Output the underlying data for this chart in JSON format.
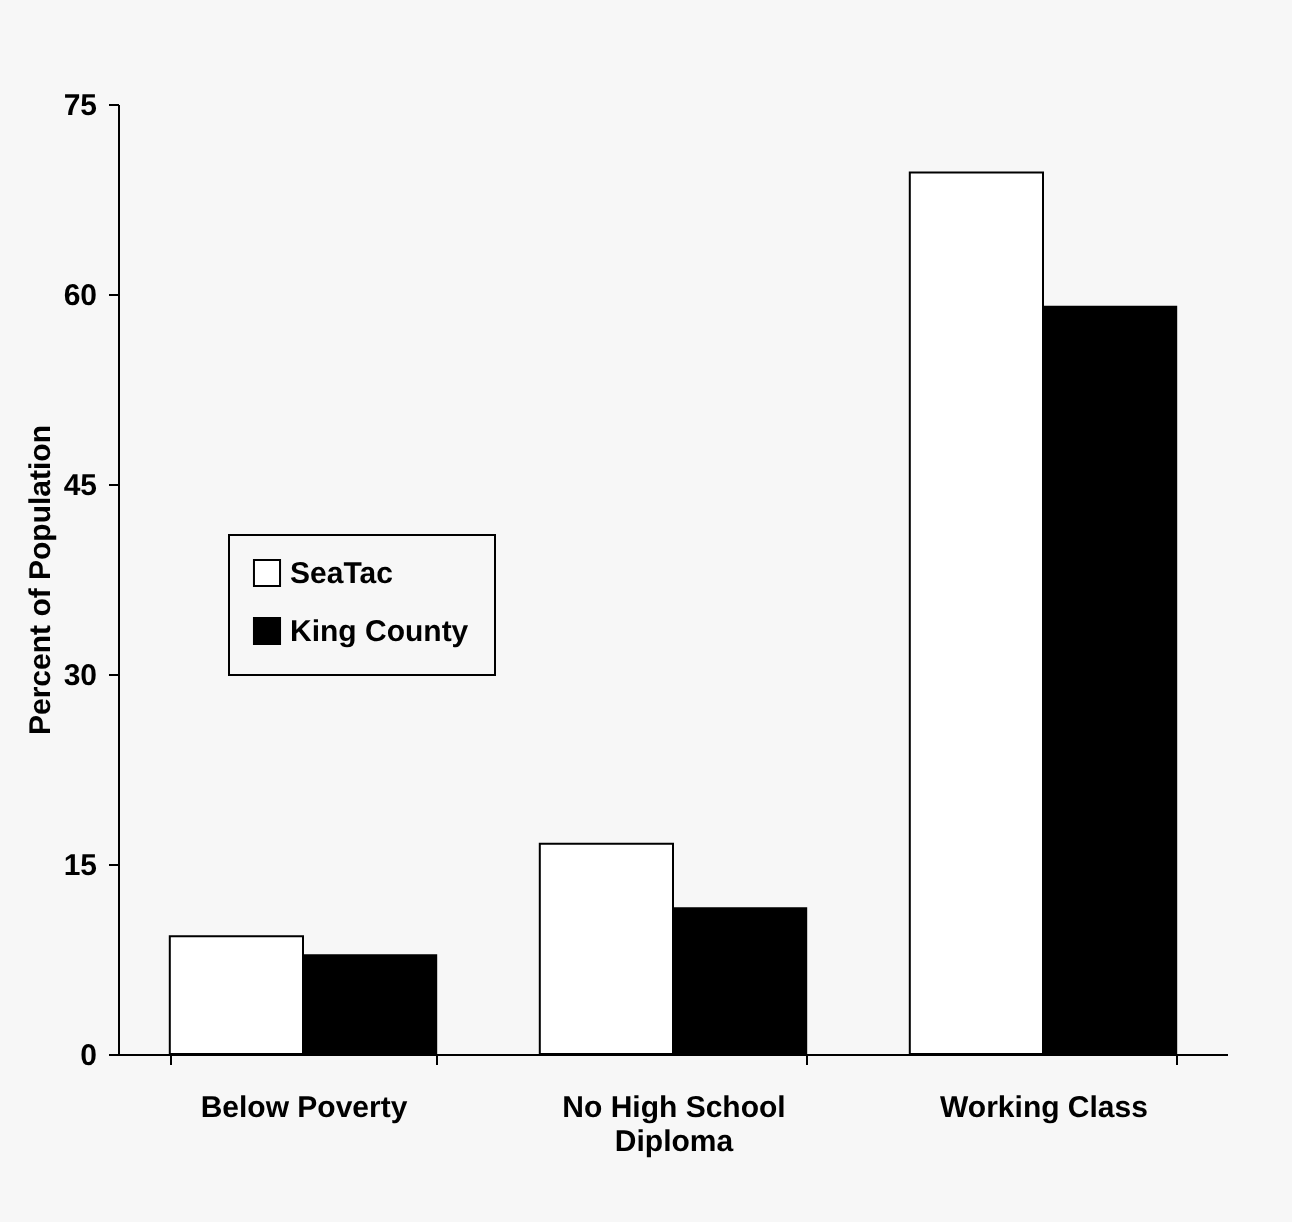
{
  "chart_data": {
    "type": "bar",
    "ylabel": "Percent of Population",
    "categories": [
      "Below Poverty",
      "No High School Diploma",
      "Working Class"
    ],
    "series": [
      {
        "name": "SeaTac",
        "color": "#ffffff",
        "values": [
          9.3,
          16.6,
          69.6
        ]
      },
      {
        "name": "King County",
        "color": "#000000",
        "values": [
          7.8,
          11.5,
          59.0
        ]
      }
    ],
    "ylim": [
      0,
      75
    ],
    "yticks": [
      0,
      15,
      30,
      45,
      60,
      75
    ],
    "grid": false,
    "legend": "left"
  }
}
